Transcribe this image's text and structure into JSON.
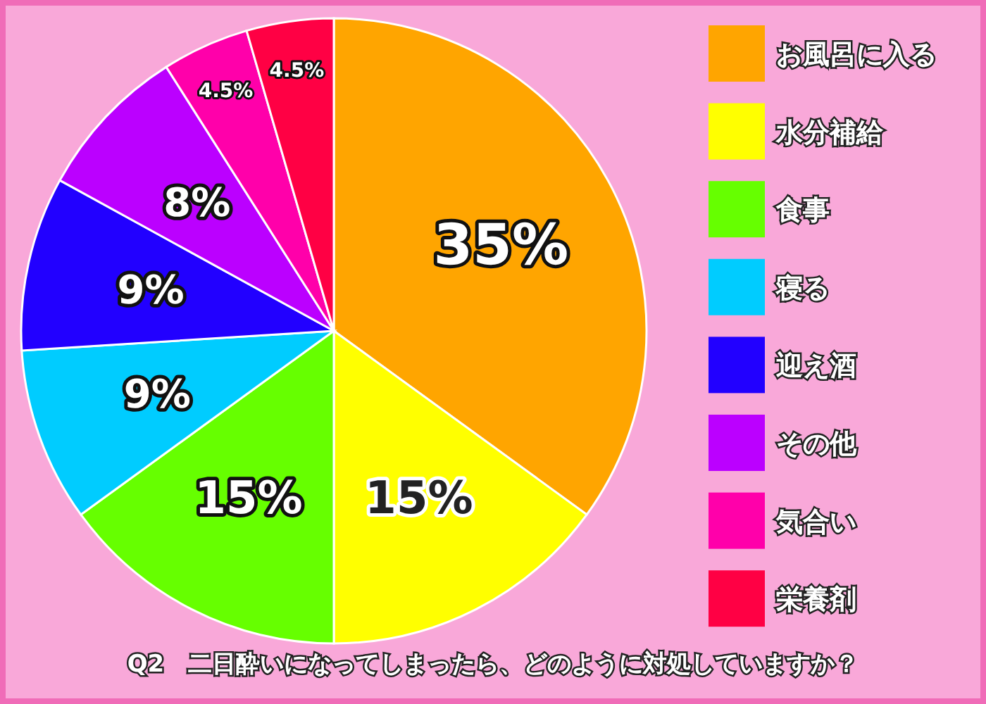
{
  "chart_data": {
    "type": "pie",
    "title": "Q2　二日酔いになってしまったら、どのように対処していますか？",
    "categories": [
      "お風呂に入る",
      "水分補給",
      "食事",
      "寝る",
      "迎え酒",
      "その他",
      "気合い",
      "栄養剤"
    ],
    "values": [
      35,
      15,
      15,
      9,
      9,
      8,
      4.5,
      4.5
    ],
    "value_labels": [
      "35%",
      "15%",
      "15%",
      "9%",
      "9%",
      "8%",
      "4.5%",
      "4.5%"
    ],
    "colors": [
      "#ffa500",
      "#ffff00",
      "#66ff00",
      "#00ccff",
      "#2200ff",
      "#bb00ff",
      "#ff00aa",
      "#ff0044"
    ],
    "legend": "right"
  }
}
